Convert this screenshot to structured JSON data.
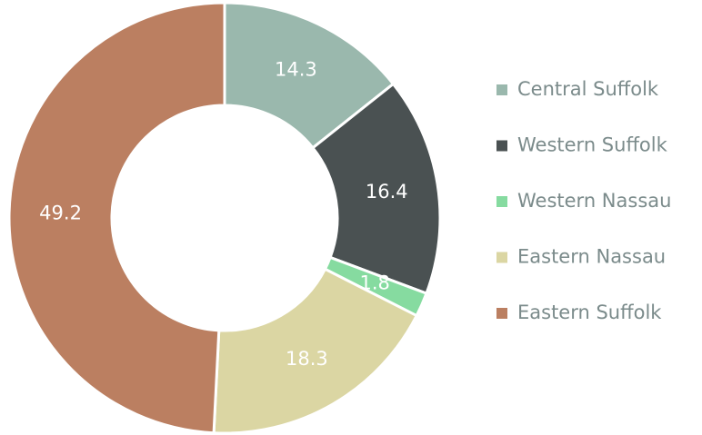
{
  "chart_data": {
    "type": "donut",
    "categories": [
      "Central Suffolk",
      "Western Suffolk",
      "Western Nassau",
      "Eastern Nassau",
      "Eastern Suffolk"
    ],
    "values": [
      14.3,
      16.4,
      1.8,
      18.3,
      49.2
    ],
    "colors": [
      "#9ab8ad",
      "#4a5152",
      "#86dba0",
      "#dbd6a3",
      "#bb7f61"
    ],
    "legend": "right"
  }
}
